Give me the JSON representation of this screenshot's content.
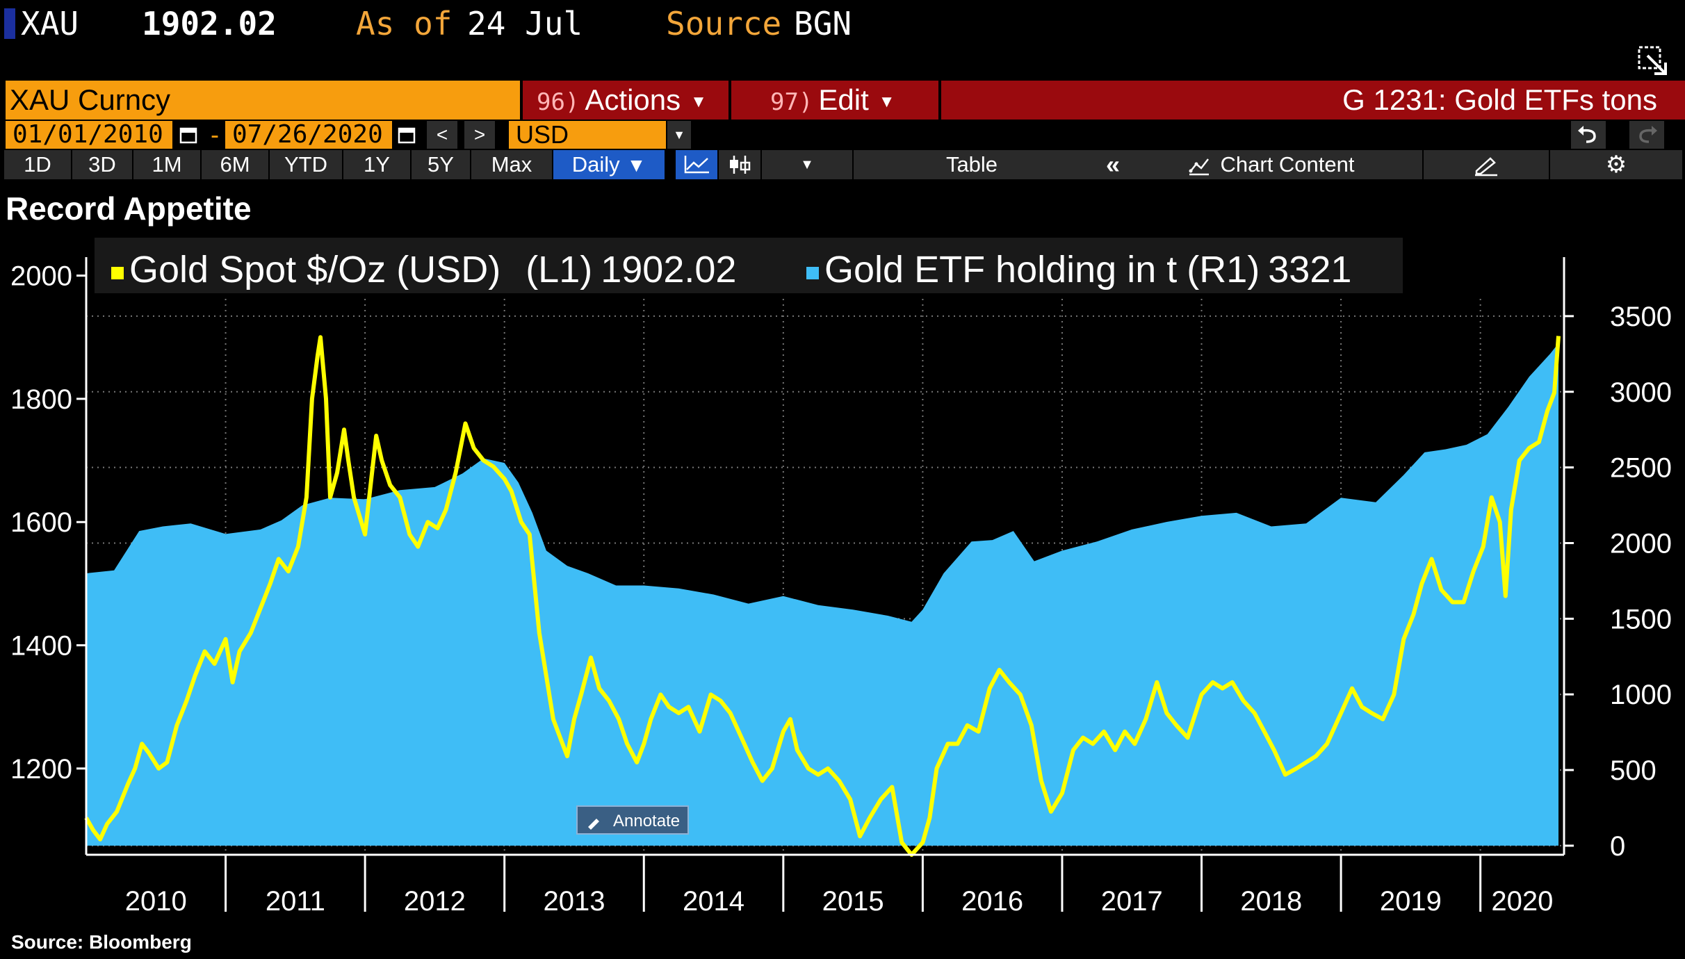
{
  "header": {
    "ticker": "XAU",
    "price": "1902.02",
    "asof_label": "As of",
    "asof_date": "24 Jul",
    "source_label": "Source",
    "source_value": "BGN"
  },
  "toolbar": {
    "security": "XAU Curncy",
    "actions_num": "96)",
    "actions_label": "Actions",
    "edit_num": "97)",
    "edit_label": "Edit",
    "chart_name": "G 1231: Gold ETFs tons",
    "start_date": "01/01/2010",
    "end_date": "07/26/2020",
    "date_sep": "-",
    "currency": "USD",
    "periods": [
      "1D",
      "3D",
      "1M",
      "6M",
      "YTD",
      "1Y",
      "5Y",
      "Max"
    ],
    "frequency": "Daily",
    "table_label": "Table",
    "chart_content_label": "Chart Content",
    "annotate_label": "Annotate"
  },
  "icons": {
    "popout": "popout-icon",
    "calendar": "calendar-icon",
    "prev": "chevron-left-icon",
    "next": "chevron-right-icon",
    "dropdown": "caret-down-icon",
    "line_chart": "line-chart-icon",
    "candles": "candlestick-icon",
    "collapse": "double-chevron-left-icon",
    "chart_content": "chart-content-icon",
    "edit_pen": "pen-icon",
    "settings": "gear-icon",
    "undo": "undo-icon",
    "redo": "redo-icon"
  },
  "colors": {
    "gold_line": "#ffff00",
    "etf_area": "#3fbdf6",
    "security_bg": "#f79d0e",
    "bar_red": "#9a0a0e",
    "active_blue": "#1e5bc6"
  },
  "chart_data": {
    "type": "line+area",
    "title": "Record Appetite",
    "source": "Source: Bloomberg",
    "x_labels": [
      "2010",
      "2011",
      "2012",
      "2013",
      "2014",
      "2015",
      "2016",
      "2017",
      "2018",
      "2019",
      "2020"
    ],
    "x_range": [
      2010.0,
      2020.6
    ],
    "left_axis": {
      "ticks": [
        1200,
        1400,
        1600,
        1800,
        2000
      ],
      "range": [
        1060,
        2030
      ]
    },
    "right_axis": {
      "ticks": [
        0,
        500,
        1000,
        1500,
        2000,
        2500,
        3000,
        3500
      ],
      "range": [
        -60,
        3890
      ]
    },
    "grid": "dotted",
    "legend_position": "top",
    "series": [
      {
        "name": "Gold Spot $/Oz (USD)",
        "axis_label": "(L1)",
        "last": "1902.02",
        "color": "#ffff00",
        "style": "line",
        "points": [
          [
            2010.0,
            1120
          ],
          [
            2010.05,
            1100
          ],
          [
            2010.1,
            1085
          ],
          [
            2010.15,
            1110
          ],
          [
            2010.22,
            1130
          ],
          [
            2010.3,
            1175
          ],
          [
            2010.35,
            1200
          ],
          [
            2010.4,
            1240
          ],
          [
            2010.45,
            1225
          ],
          [
            2010.52,
            1200
          ],
          [
            2010.58,
            1210
          ],
          [
            2010.65,
            1270
          ],
          [
            2010.72,
            1310
          ],
          [
            2010.78,
            1350
          ],
          [
            2010.85,
            1390
          ],
          [
            2010.92,
            1370
          ],
          [
            2011.0,
            1410
          ],
          [
            2011.05,
            1340
          ],
          [
            2011.1,
            1390
          ],
          [
            2011.18,
            1420
          ],
          [
            2011.25,
            1460
          ],
          [
            2011.32,
            1500
          ],
          [
            2011.38,
            1540
          ],
          [
            2011.45,
            1520
          ],
          [
            2011.52,
            1560
          ],
          [
            2011.58,
            1640
          ],
          [
            2011.62,
            1800
          ],
          [
            2011.66,
            1870
          ],
          [
            2011.68,
            1900
          ],
          [
            2011.72,
            1800
          ],
          [
            2011.75,
            1640
          ],
          [
            2011.8,
            1680
          ],
          [
            2011.85,
            1750
          ],
          [
            2011.88,
            1700
          ],
          [
            2011.92,
            1640
          ],
          [
            2012.0,
            1580
          ],
          [
            2012.08,
            1740
          ],
          [
            2012.12,
            1700
          ],
          [
            2012.18,
            1660
          ],
          [
            2012.25,
            1640
          ],
          [
            2012.32,
            1580
          ],
          [
            2012.38,
            1560
          ],
          [
            2012.45,
            1600
          ],
          [
            2012.52,
            1590
          ],
          [
            2012.58,
            1620
          ],
          [
            2012.65,
            1680
          ],
          [
            2012.72,
            1760
          ],
          [
            2012.78,
            1720
          ],
          [
            2012.85,
            1700
          ],
          [
            2012.92,
            1690
          ],
          [
            2013.0,
            1670
          ],
          [
            2013.05,
            1650
          ],
          [
            2013.12,
            1600
          ],
          [
            2013.18,
            1580
          ],
          [
            2013.25,
            1420
          ],
          [
            2013.3,
            1350
          ],
          [
            2013.35,
            1280
          ],
          [
            2013.4,
            1250
          ],
          [
            2013.45,
            1220
          ],
          [
            2013.5,
            1280
          ],
          [
            2013.55,
            1320
          ],
          [
            2013.62,
            1380
          ],
          [
            2013.68,
            1330
          ],
          [
            2013.75,
            1310
          ],
          [
            2013.82,
            1280
          ],
          [
            2013.88,
            1240
          ],
          [
            2013.95,
            1210
          ],
          [
            2014.0,
            1240
          ],
          [
            2014.05,
            1280
          ],
          [
            2014.12,
            1320
          ],
          [
            2014.18,
            1300
          ],
          [
            2014.25,
            1290
          ],
          [
            2014.32,
            1300
          ],
          [
            2014.4,
            1260
          ],
          [
            2014.48,
            1320
          ],
          [
            2014.55,
            1310
          ],
          [
            2014.62,
            1290
          ],
          [
            2014.7,
            1250
          ],
          [
            2014.78,
            1210
          ],
          [
            2014.85,
            1180
          ],
          [
            2014.92,
            1200
          ],
          [
            2015.0,
            1260
          ],
          [
            2015.05,
            1280
          ],
          [
            2015.1,
            1230
          ],
          [
            2015.18,
            1200
          ],
          [
            2015.25,
            1190
          ],
          [
            2015.32,
            1200
          ],
          [
            2015.4,
            1180
          ],
          [
            2015.48,
            1150
          ],
          [
            2015.55,
            1090
          ],
          [
            2015.62,
            1120
          ],
          [
            2015.7,
            1150
          ],
          [
            2015.78,
            1170
          ],
          [
            2015.85,
            1080
          ],
          [
            2015.92,
            1060
          ],
          [
            2016.0,
            1080
          ],
          [
            2016.05,
            1120
          ],
          [
            2016.1,
            1200
          ],
          [
            2016.18,
            1240
          ],
          [
            2016.25,
            1240
          ],
          [
            2016.32,
            1270
          ],
          [
            2016.4,
            1260
          ],
          [
            2016.48,
            1330
          ],
          [
            2016.55,
            1360
          ],
          [
            2016.62,
            1340
          ],
          [
            2016.7,
            1320
          ],
          [
            2016.78,
            1270
          ],
          [
            2016.85,
            1180
          ],
          [
            2016.92,
            1130
          ],
          [
            2017.0,
            1160
          ],
          [
            2017.08,
            1230
          ],
          [
            2017.15,
            1250
          ],
          [
            2017.22,
            1240
          ],
          [
            2017.3,
            1260
          ],
          [
            2017.38,
            1230
          ],
          [
            2017.45,
            1260
          ],
          [
            2017.52,
            1240
          ],
          [
            2017.6,
            1280
          ],
          [
            2017.68,
            1340
          ],
          [
            2017.75,
            1290
          ],
          [
            2017.82,
            1270
          ],
          [
            2017.9,
            1250
          ],
          [
            2018.0,
            1320
          ],
          [
            2018.08,
            1340
          ],
          [
            2018.15,
            1330
          ],
          [
            2018.22,
            1340
          ],
          [
            2018.3,
            1310
          ],
          [
            2018.38,
            1290
          ],
          [
            2018.45,
            1260
          ],
          [
            2018.52,
            1230
          ],
          [
            2018.6,
            1190
          ],
          [
            2018.68,
            1200
          ],
          [
            2018.75,
            1210
          ],
          [
            2018.82,
            1220
          ],
          [
            2018.9,
            1240
          ],
          [
            2019.0,
            1290
          ],
          [
            2019.08,
            1330
          ],
          [
            2019.15,
            1300
          ],
          [
            2019.22,
            1290
          ],
          [
            2019.3,
            1280
          ],
          [
            2019.38,
            1320
          ],
          [
            2019.45,
            1410
          ],
          [
            2019.52,
            1450
          ],
          [
            2019.58,
            1500
          ],
          [
            2019.65,
            1540
          ],
          [
            2019.72,
            1490
          ],
          [
            2019.8,
            1470
          ],
          [
            2019.88,
            1470
          ],
          [
            2019.95,
            1520
          ],
          [
            2020.02,
            1560
          ],
          [
            2020.08,
            1640
          ],
          [
            2020.14,
            1600
          ],
          [
            2020.18,
            1480
          ],
          [
            2020.22,
            1620
          ],
          [
            2020.28,
            1700
          ],
          [
            2020.35,
            1720
          ],
          [
            2020.42,
            1730
          ],
          [
            2020.48,
            1780
          ],
          [
            2020.53,
            1810
          ],
          [
            2020.56,
            1902
          ]
        ]
      },
      {
        "name": "Gold ETF holding in t",
        "axis_label": "(R1)",
        "last": "3321",
        "color": "#3fbdf6",
        "style": "area",
        "points": [
          [
            2010.0,
            1800
          ],
          [
            2010.2,
            1820
          ],
          [
            2010.38,
            2080
          ],
          [
            2010.55,
            2110
          ],
          [
            2010.75,
            2130
          ],
          [
            2011.0,
            2060
          ],
          [
            2011.25,
            2090
          ],
          [
            2011.4,
            2150
          ],
          [
            2011.55,
            2250
          ],
          [
            2011.75,
            2300
          ],
          [
            2012.0,
            2290
          ],
          [
            2012.25,
            2350
          ],
          [
            2012.5,
            2370
          ],
          [
            2012.7,
            2460
          ],
          [
            2012.85,
            2560
          ],
          [
            2013.0,
            2530
          ],
          [
            2013.1,
            2400
          ],
          [
            2013.2,
            2200
          ],
          [
            2013.3,
            1950
          ],
          [
            2013.45,
            1850
          ],
          [
            2013.6,
            1800
          ],
          [
            2013.8,
            1720
          ],
          [
            2014.0,
            1720
          ],
          [
            2014.25,
            1700
          ],
          [
            2014.5,
            1660
          ],
          [
            2014.75,
            1600
          ],
          [
            2015.0,
            1650
          ],
          [
            2015.25,
            1590
          ],
          [
            2015.5,
            1560
          ],
          [
            2015.75,
            1520
          ],
          [
            2015.92,
            1480
          ],
          [
            2016.0,
            1560
          ],
          [
            2016.15,
            1800
          ],
          [
            2016.35,
            2010
          ],
          [
            2016.5,
            2020
          ],
          [
            2016.65,
            2080
          ],
          [
            2016.8,
            1880
          ],
          [
            2017.0,
            1950
          ],
          [
            2017.25,
            2010
          ],
          [
            2017.5,
            2090
          ],
          [
            2017.75,
            2140
          ],
          [
            2018.0,
            2180
          ],
          [
            2018.25,
            2200
          ],
          [
            2018.5,
            2110
          ],
          [
            2018.75,
            2130
          ],
          [
            2019.0,
            2300
          ],
          [
            2019.25,
            2270
          ],
          [
            2019.45,
            2450
          ],
          [
            2019.6,
            2600
          ],
          [
            2019.75,
            2620
          ],
          [
            2019.9,
            2650
          ],
          [
            2020.05,
            2720
          ],
          [
            2020.2,
            2900
          ],
          [
            2020.35,
            3100
          ],
          [
            2020.5,
            3250
          ],
          [
            2020.56,
            3321
          ]
        ]
      }
    ]
  }
}
